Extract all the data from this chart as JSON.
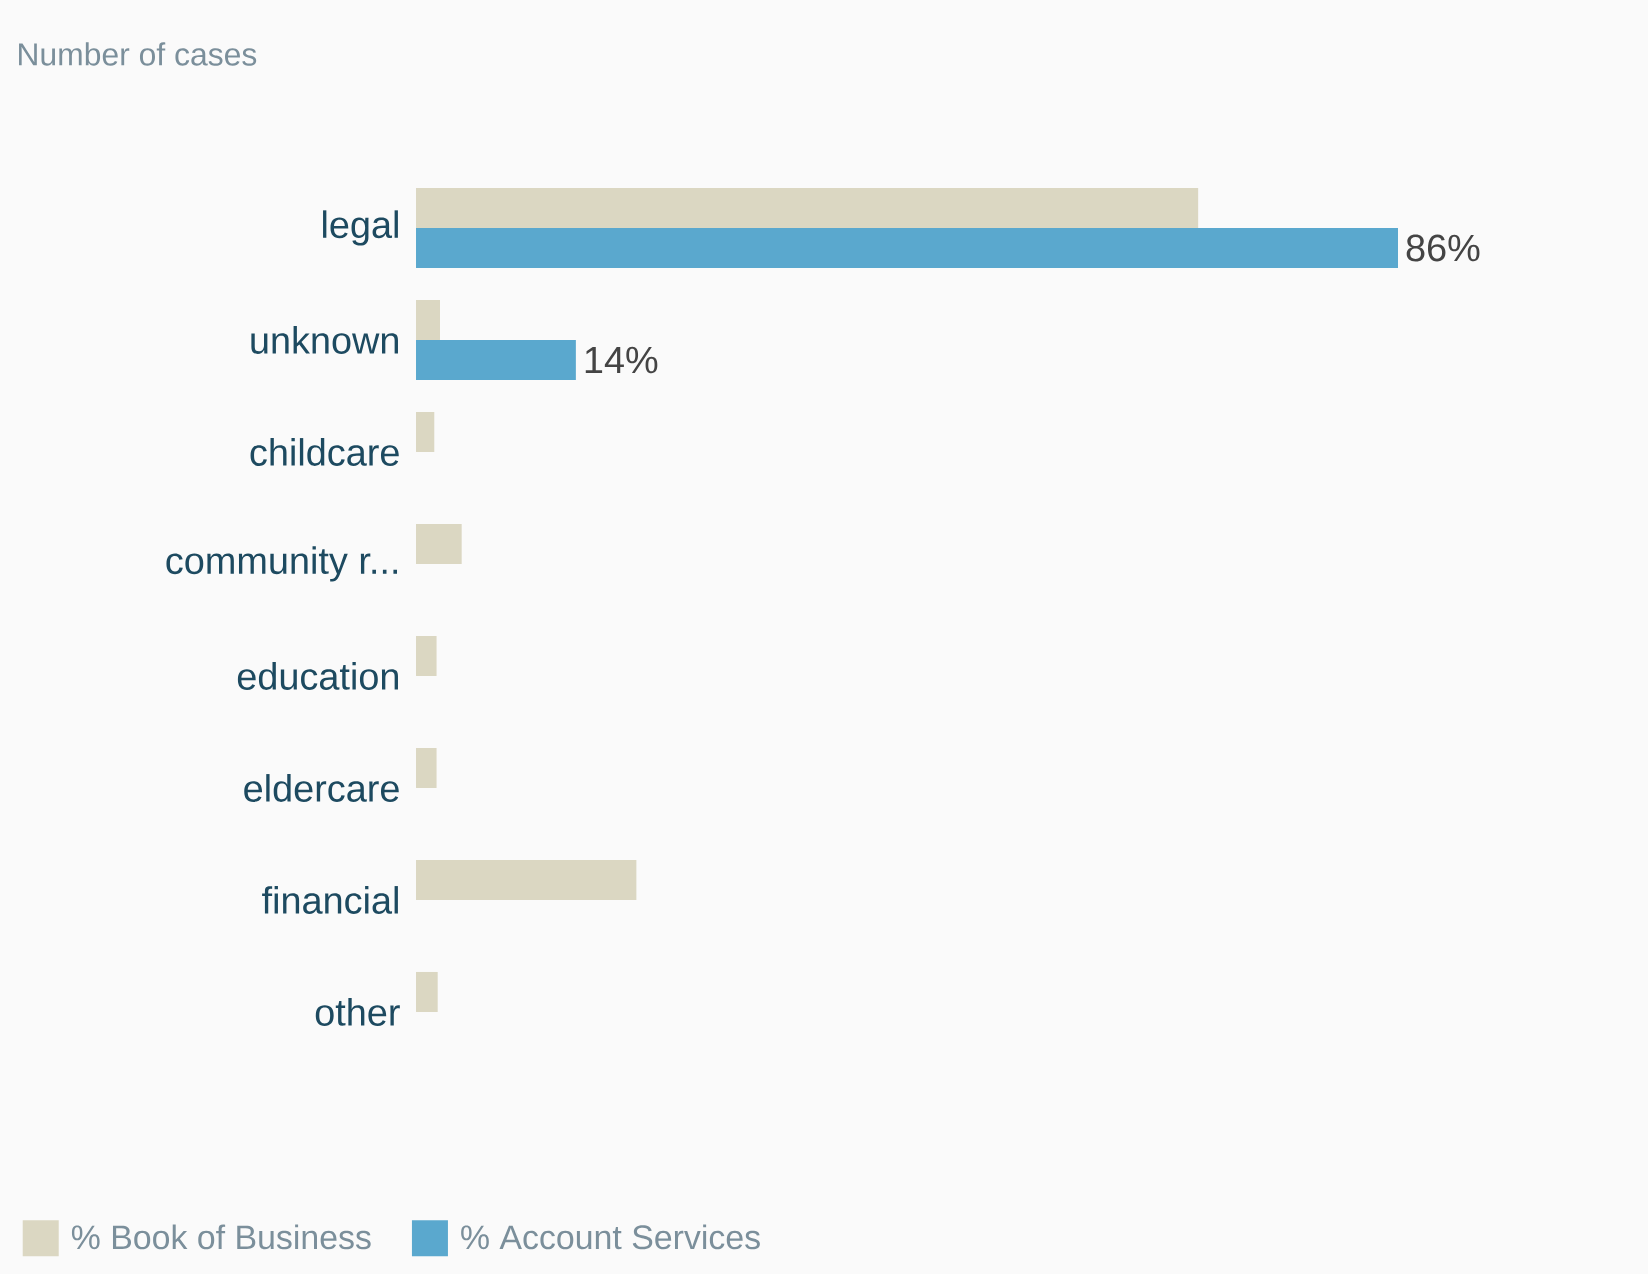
{
  "chart_data": {
    "type": "bar",
    "orientation": "horizontal",
    "subtitle": "Number of cases",
    "legend": "bottom",
    "categories": [
      "legal",
      "unknown",
      "childcare",
      "community r...",
      "education",
      "eldercare",
      "financial",
      "other"
    ],
    "series": [
      {
        "name": "% Book of Business",
        "color": "#dbd7c2",
        "values": [
          68.5,
          2.1,
          1.6,
          4.0,
          1.8,
          1.8,
          19.3,
          1.9
        ]
      },
      {
        "name": "% Account Services",
        "color": "#5aa8ce",
        "values": [
          86,
          14,
          null,
          null,
          null,
          null,
          null,
          null
        ],
        "value_labels": [
          "86%",
          "14%",
          null,
          null,
          null,
          null,
          null,
          null
        ]
      }
    ]
  }
}
